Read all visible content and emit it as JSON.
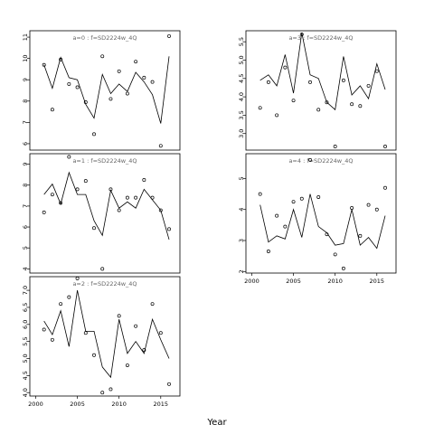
{
  "chart_data": {
    "type": "scatter",
    "xlabel": "Year",
    "xlim": [
      1999.3,
      2017.3
    ],
    "x_ticks": [
      2000,
      2005,
      2010,
      2015
    ],
    "x_tick_labels": [
      "2000",
      "2005",
      "2010",
      "2015"
    ],
    "years": [
      2001,
      2002,
      2003,
      2004,
      2005,
      2006,
      2007,
      2008,
      2009,
      2010,
      2011,
      2012,
      2013,
      2014,
      2015,
      2016
    ],
    "legend": "none",
    "grid": false,
    "panels": [
      {
        "title": "a=0  :  f=SD2224w_4Q",
        "ylim": [
          5.7,
          11.3
        ],
        "y_ticks": [
          6,
          7,
          8,
          9,
          10,
          11
        ],
        "y_tick_labels": [
          "6",
          "7",
          "8",
          "9",
          "10",
          "11"
        ],
        "observed": [
          9.7,
          7.6,
          9.95,
          8.8,
          8.65,
          7.95,
          6.45,
          10.1,
          8.1,
          9.4,
          8.35,
          9.85,
          9.1,
          8.9,
          5.9,
          11.05
        ],
        "fitted": [
          9.7,
          8.6,
          10.05,
          9.1,
          9.0,
          7.85,
          7.2,
          9.25,
          8.35,
          8.8,
          8.45,
          9.35,
          8.9,
          8.3,
          6.95,
          10.1
        ]
      },
      {
        "title": "a=1  :  f=SD2224w_4Q",
        "ylim": [
          3.8,
          9.5
        ],
        "y_ticks": [
          4,
          5,
          6,
          7,
          8,
          9
        ],
        "y_tick_labels": [
          "4",
          "5",
          "6",
          "7",
          "8",
          "9"
        ],
        "observed": [
          6.7,
          7.55,
          7.15,
          9.35,
          7.8,
          8.2,
          5.95,
          4.0,
          7.8,
          6.8,
          7.4,
          7.4,
          8.25,
          7.4,
          6.8,
          5.9
        ],
        "fitted": [
          7.55,
          8.05,
          7.1,
          8.6,
          7.55,
          7.55,
          6.3,
          5.6,
          7.75,
          6.9,
          7.2,
          6.9,
          7.8,
          7.3,
          6.8,
          5.4
        ]
      },
      {
        "title": "a=2  :  f=SD2224w_4Q",
        "ylim": [
          3.9,
          7.4
        ],
        "y_ticks": [
          4.0,
          4.5,
          5.0,
          5.5,
          6.0,
          6.5,
          7.0
        ],
        "y_tick_labels": [
          "4.0",
          "4.5",
          "5.0",
          "5.5",
          "6.0",
          "6.5",
          "7.0"
        ],
        "observed": [
          5.85,
          5.55,
          6.6,
          6.8,
          7.35,
          5.75,
          5.1,
          4.0,
          4.1,
          6.25,
          4.8,
          5.95,
          5.25,
          6.6,
          5.75,
          4.25
        ],
        "fitted": [
          6.1,
          5.7,
          6.4,
          5.35,
          7.0,
          5.8,
          5.8,
          4.75,
          4.45,
          6.15,
          5.15,
          5.5,
          5.15,
          6.15,
          5.55,
          5.0
        ]
      },
      {
        "title": "a=3  :  f=SD2224w_4Q",
        "ylim": [
          2.55,
          5.8
        ],
        "y_ticks": [
          3.0,
          3.5,
          4.0,
          4.5,
          5.0,
          5.5
        ],
        "y_tick_labels": [
          "3.0",
          "3.5",
          "4.0",
          "4.5",
          "5.0",
          "5.5"
        ],
        "observed": [
          3.7,
          4.4,
          3.5,
          4.8,
          3.9,
          5.7,
          4.4,
          3.65,
          3.85,
          2.65,
          4.45,
          3.8,
          3.75,
          4.3,
          4.7,
          2.65
        ],
        "fitted": [
          4.45,
          4.6,
          4.3,
          5.15,
          4.1,
          5.75,
          4.6,
          4.5,
          3.85,
          3.65,
          5.1,
          4.05,
          4.3,
          3.95,
          4.9,
          4.2
        ]
      },
      {
        "title": "a=4  :  f=SD2224w_4Q",
        "ylim": [
          1.95,
          5.8
        ],
        "y_ticks": [
          2,
          3,
          4,
          5
        ],
        "y_tick_labels": [
          "2",
          "3",
          "4",
          "5"
        ],
        "observed": [
          4.5,
          2.65,
          3.8,
          3.45,
          4.25,
          4.35,
          5.6,
          4.4,
          3.2,
          2.55,
          2.1,
          4.05,
          3.15,
          4.15,
          4.0,
          4.7
        ],
        "fitted": [
          4.15,
          2.95,
          3.15,
          3.05,
          4.0,
          3.1,
          4.5,
          3.45,
          3.25,
          2.85,
          2.9,
          4.0,
          2.85,
          3.1,
          2.75,
          3.8
        ]
      }
    ]
  }
}
